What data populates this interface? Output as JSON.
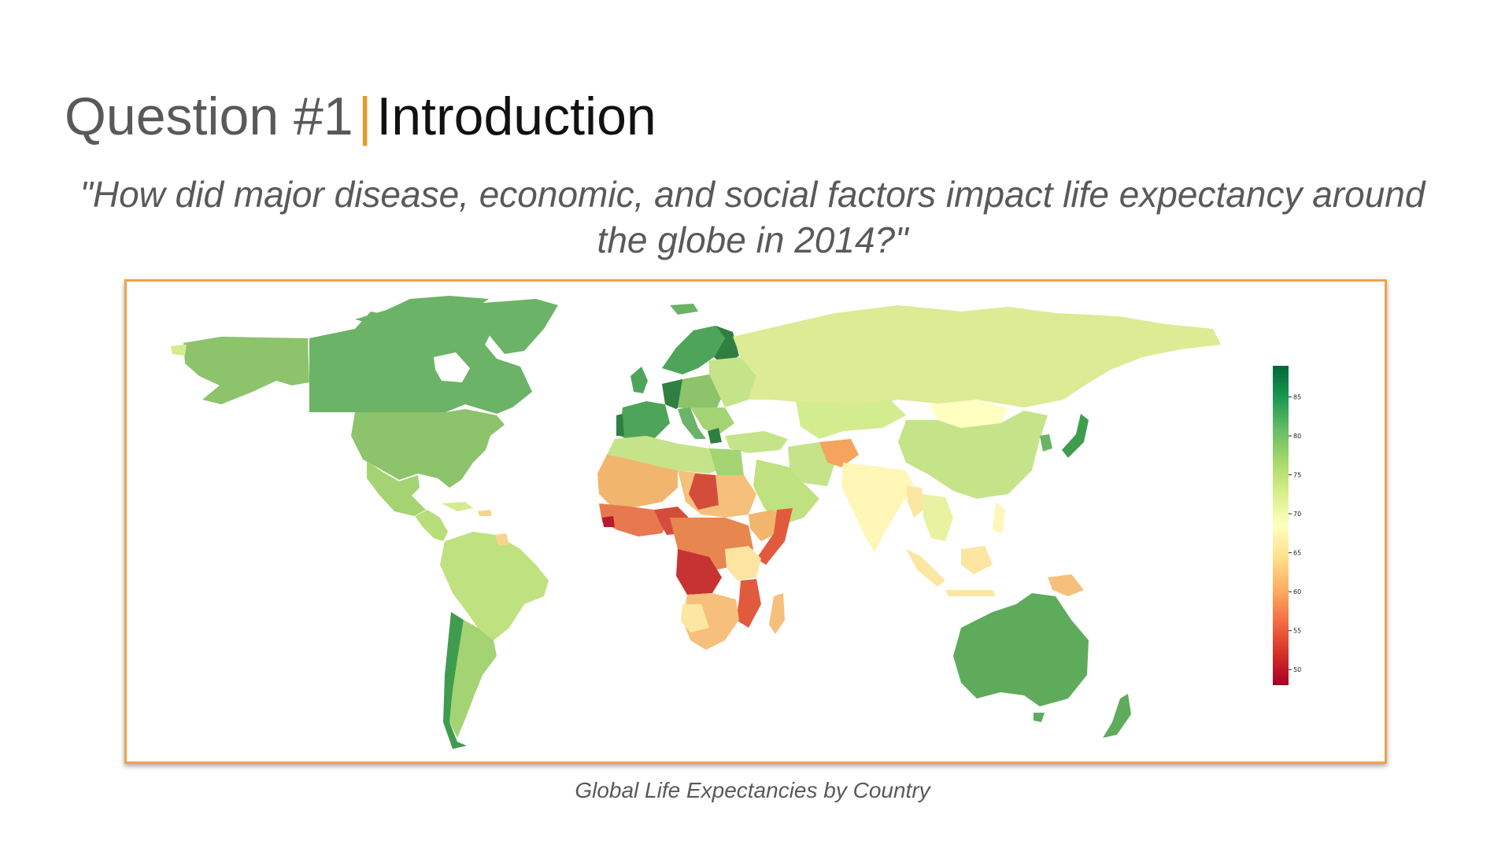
{
  "slide": {
    "title_question": "Question #1",
    "title_separator": "|",
    "title_topic": "Introduction",
    "question_line1": "\"How did major disease, economic, and social factors impact life expectancy around",
    "question_line2": "the globe in 2014?\"",
    "caption": "Global Life Expectancies by Country"
  },
  "colors": {
    "accent": "#f0a346",
    "title_gray": "#595959",
    "scale": [
      "#a50026",
      "#d73027",
      "#f46d43",
      "#fdae61",
      "#fee08b",
      "#ffffbf",
      "#d9ef8b",
      "#a6d96a",
      "#66bd63",
      "#1a9850",
      "#006837"
    ]
  },
  "map": {
    "colorbar": {
      "min": 48,
      "max": 89,
      "ticks": [
        {
          "value": 85,
          "label": "85"
        },
        {
          "value": 80,
          "label": "80"
        },
        {
          "value": 75,
          "label": "75"
        },
        {
          "value": 70,
          "label": "70"
        },
        {
          "value": 65,
          "label": "65"
        },
        {
          "value": 60,
          "label": "60"
        },
        {
          "value": 55,
          "label": "55"
        },
        {
          "value": 50,
          "label": "50"
        }
      ]
    }
  }
}
